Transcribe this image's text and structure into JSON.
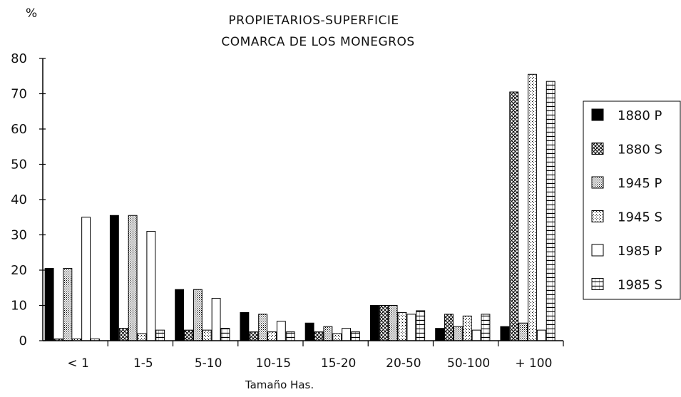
{
  "chart_data": {
    "type": "bar",
    "title": "PROPIETARIOS-SUPERFICIE",
    "subtitle": "COMARCA DE LOS MONEGROS",
    "ylabel": "%",
    "xlabel": "Tamaño Has.",
    "ylim": [
      0,
      80
    ],
    "yticks": [
      0,
      10,
      20,
      30,
      40,
      50,
      60,
      70,
      80
    ],
    "categories": [
      "< 1",
      "1-5",
      "5-10",
      "10-15",
      "15-20",
      "20-50",
      "50-100",
      "+ 100"
    ],
    "series": [
      {
        "name": "1880 P",
        "pattern": "solid",
        "values": [
          20.5,
          35.5,
          14.5,
          8,
          5,
          10,
          3.5,
          4
        ]
      },
      {
        "name": "1880 S",
        "pattern": "crosshatch",
        "values": [
          0.5,
          3.5,
          3,
          2.5,
          2.5,
          10,
          7.5,
          70.5
        ]
      },
      {
        "name": "1945 P",
        "pattern": "dots",
        "values": [
          20.5,
          35.5,
          14.5,
          7.5,
          4,
          10,
          4,
          5
        ]
      },
      {
        "name": "1945 S",
        "pattern": "sparse-dots",
        "values": [
          0.5,
          2,
          3,
          2.5,
          2,
          8,
          7,
          75.5
        ]
      },
      {
        "name": "1985 P",
        "pattern": "empty",
        "values": [
          35,
          31,
          12,
          5.5,
          3.5,
          7.5,
          3,
          3
        ]
      },
      {
        "name": "1985 S",
        "pattern": "horizontal-lines",
        "values": [
          0.5,
          3,
          3.5,
          2.5,
          2.5,
          8.5,
          7.5,
          73.5
        ]
      }
    ],
    "grid": false,
    "legend_position": "right"
  }
}
